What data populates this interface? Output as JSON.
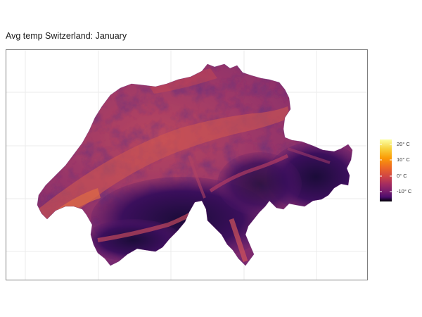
{
  "title": "Avg temp Switzerland: January",
  "legend": {
    "scale": "inferno",
    "labels": [
      "20° C",
      "10° C",
      "0° C",
      "-10° C"
    ],
    "values": [
      20,
      10,
      0,
      -10
    ],
    "range": [
      -16,
      22
    ]
  },
  "colors": {
    "cold": "#1a0c35",
    "mid": "#7a2a6e",
    "warm": "#d9604e",
    "hot": "#f8f08e",
    "grid": "#ebebeb",
    "border": "#7f7f7f"
  }
}
